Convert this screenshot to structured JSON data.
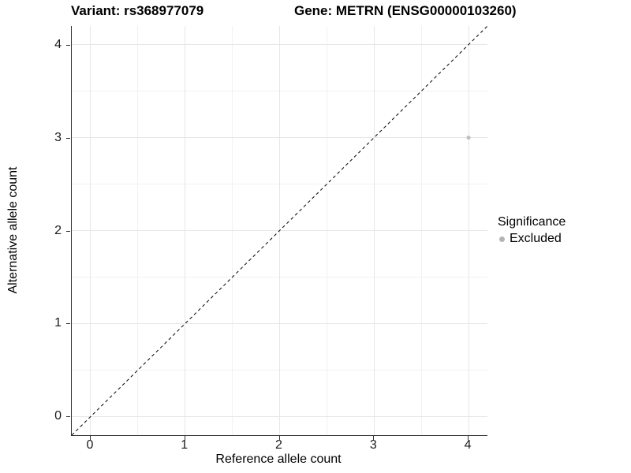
{
  "figure": {
    "title_left": "Variant: rs368977079",
    "title_right": "Gene: METRN (ENSG00000103260)"
  },
  "chart_data": {
    "type": "scatter",
    "title": "Variant: rs368977079    Gene: METRN (ENSG00000103260)",
    "xlabel": "Reference allele count",
    "ylabel": "Alternative allele count",
    "xlim": [
      -0.2,
      4.2
    ],
    "ylim": [
      -0.2,
      4.2
    ],
    "xticks": [
      0,
      1,
      2,
      3,
      4
    ],
    "yticks": [
      0,
      1,
      2,
      3,
      4
    ],
    "minor_step": 0.5,
    "grid": true,
    "series": [
      {
        "name": "Excluded",
        "color": "#c0c0c0",
        "points": [
          {
            "x": 4,
            "y": 3
          }
        ]
      }
    ],
    "reference_line": {
      "kind": "identity",
      "style": "dashed",
      "color": "#000000"
    },
    "legend": {
      "title": "Significance",
      "position": "right",
      "entries": [
        {
          "label": "Excluded",
          "color": "#b3b3b3"
        }
      ]
    }
  },
  "colors": {
    "background": "#ffffff",
    "grid_major": "#e6e6e6",
    "grid_minor": "#f1f1f1",
    "axis_line": "#333333",
    "text": "#000000"
  }
}
